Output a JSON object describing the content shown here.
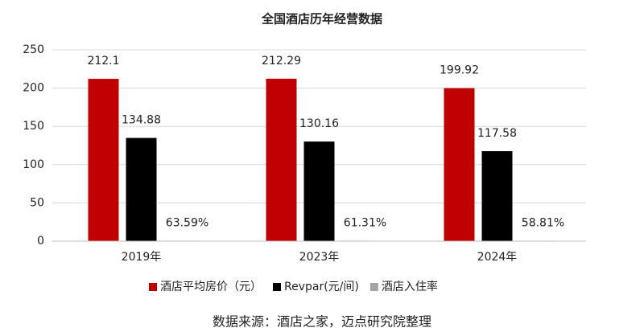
{
  "chart_data": {
    "type": "bar",
    "title": "全国酒店历年经营数据",
    "categories": [
      "2019年",
      "2023年",
      "2024年"
    ],
    "series": [
      {
        "name": "酒店平均房价（元）",
        "color": "#c00000",
        "values": [
          212.1,
          212.29,
          199.92
        ]
      },
      {
        "name": "Revpar(元/间)",
        "color": "#000000",
        "values": [
          134.88,
          130.16,
          117.58
        ]
      },
      {
        "name": "酒店入住率",
        "color": "#a5a5a5",
        "values": [
          0.6359,
          0.6131,
          0.5881
        ],
        "value_labels": [
          "63.59%",
          "61.31%",
          "58.81%"
        ]
      }
    ],
    "ylim": [
      0,
      250
    ],
    "yticks": [
      0,
      50,
      100,
      150,
      200,
      250
    ],
    "grid": true,
    "legend": "bottom",
    "source": "数据来源：酒店之家，迈点研究院整理"
  }
}
